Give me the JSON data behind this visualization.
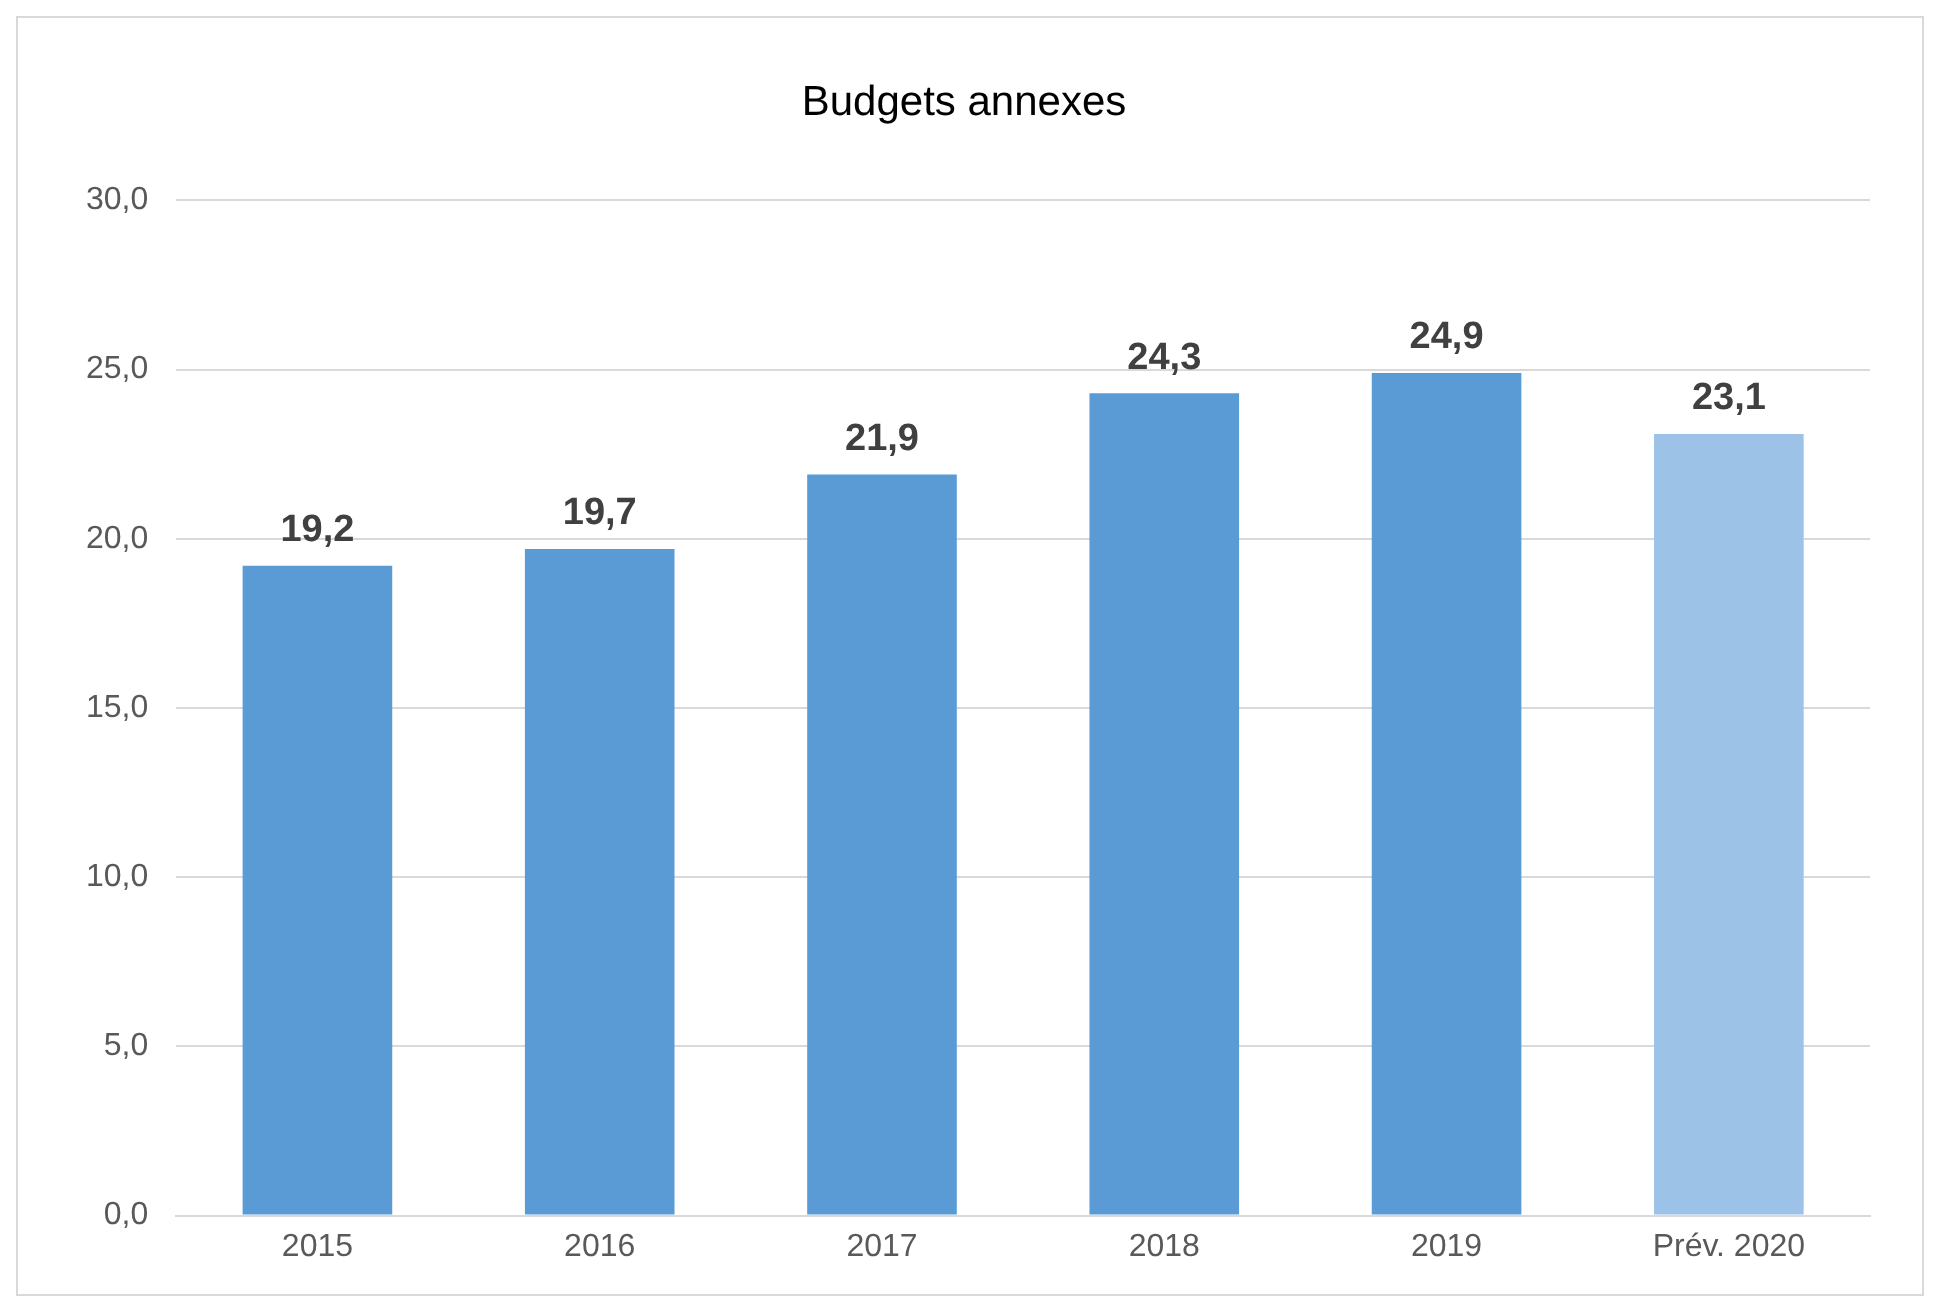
{
  "chart_data": {
    "type": "bar",
    "title": "Budgets annexes",
    "categories": [
      "2015",
      "2016",
      "2017",
      "2018",
      "2019",
      "Prév. 2020"
    ],
    "values": [
      19.2,
      19.7,
      21.9,
      24.3,
      24.9,
      23.1
    ],
    "colors": [
      "#5b9bd5",
      "#5b9bd5",
      "#5b9bd5",
      "#5b9bd5",
      "#5b9bd5",
      "#9cc2e8"
    ],
    "value_labels": [
      "19,2",
      "19,7",
      "21,9",
      "24,3",
      "24,9",
      "23,1"
    ],
    "ylim": [
      0,
      30
    ],
    "yticks": [
      {
        "value": 0,
        "label": "0,0"
      },
      {
        "value": 5,
        "label": "5,0"
      },
      {
        "value": 10,
        "label": "10,0"
      },
      {
        "value": 15,
        "label": "15,0"
      },
      {
        "value": 20,
        "label": "20,0"
      },
      {
        "value": 25,
        "label": "25,0"
      },
      {
        "value": 30,
        "label": "30,0"
      }
    ],
    "grid": "y",
    "legend": false
  }
}
